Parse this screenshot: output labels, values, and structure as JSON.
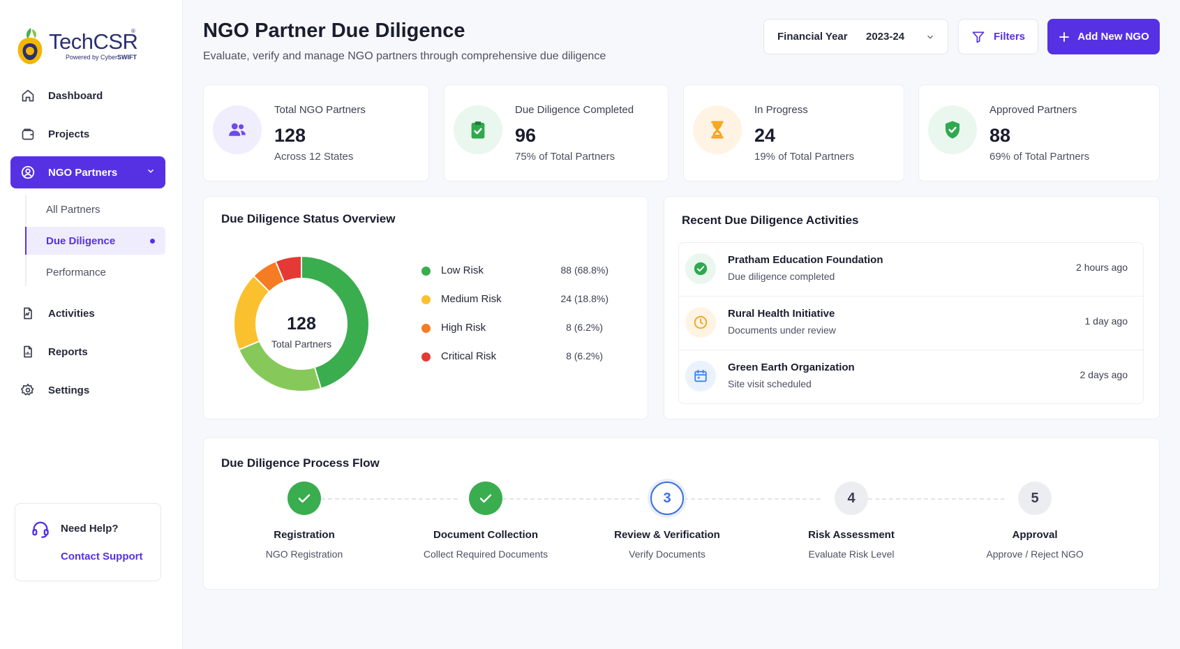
{
  "brand": {
    "name": "TechCSR",
    "registered": "®",
    "powered_by": "Powered by Cyber",
    "powered_brand": "SWIFT"
  },
  "sidebar": {
    "items": [
      {
        "label": "Dashboard",
        "icon": "home-icon"
      },
      {
        "label": "Projects",
        "icon": "wallet-icon"
      },
      {
        "label": "NGO Partners",
        "icon": "partners-icon"
      },
      {
        "label": "Activities",
        "icon": "activity-icon"
      },
      {
        "label": "Reports",
        "icon": "report-icon"
      },
      {
        "label": "Settings",
        "icon": "gear-icon"
      }
    ],
    "subitems": [
      {
        "label": "All Partners"
      },
      {
        "label": "Due Diligence"
      },
      {
        "label": "Performance"
      }
    ],
    "help": {
      "title": "Need Help?",
      "link": "Contact Support"
    }
  },
  "header": {
    "title": "NGO Partner Due Diligence",
    "subtitle": "Evaluate, verify and manage NGO partners through comprehensive due diligence",
    "fy_label": "Financial Year",
    "fy_value": "2023-24",
    "filters_label": "Filters",
    "add_label": "Add New NGO"
  },
  "stats": [
    {
      "label": "Total NGO Partners",
      "value": "128",
      "sub": "Across 12 States",
      "icon": "users-icon",
      "color": "#6c4bea",
      "bg": "#f0edfd"
    },
    {
      "label": "Due Diligence Completed",
      "value": "96",
      "sub": "75% of Total Partners",
      "icon": "clipboard-check-icon",
      "color": "#2fa84f",
      "bg": "#e9f7ee"
    },
    {
      "label": "In Progress",
      "value": "24",
      "sub": "19% of Total Partners",
      "icon": "hourglass-icon",
      "color": "#f5a623",
      "bg": "#fff4e4"
    },
    {
      "label": "Approved Partners",
      "value": "88",
      "sub": "69% of Total Partners",
      "icon": "shield-check-icon",
      "color": "#2fa84f",
      "bg": "#e9f7ee"
    }
  ],
  "status_overview": {
    "title": "Due Diligence Status Overview",
    "center_value": "128",
    "center_label": "Total Partners",
    "legend": [
      {
        "name": "Low Risk",
        "value": "88 (68.8%)",
        "color": "#3aad4f"
      },
      {
        "name": "Medium Risk",
        "value": "24 (18.8%)",
        "color": "#fbc02d"
      },
      {
        "name": "High Risk",
        "value": "8 (6.2%)",
        "color": "#f57c22"
      },
      {
        "name": "Critical Risk",
        "value": "8 (6.2%)",
        "color": "#e53935"
      }
    ]
  },
  "chart_data": {
    "type": "pie",
    "categories": [
      "Low Risk",
      "Medium Risk",
      "High Risk",
      "Critical Risk"
    ],
    "values": [
      88,
      24,
      8,
      8
    ],
    "segments": [
      {
        "value": 58,
        "color": "#3aad4f"
      },
      {
        "value": 30,
        "color": "#86c95a"
      },
      {
        "value": 24,
        "color": "#fbc02d"
      },
      {
        "value": 8,
        "color": "#f57c22"
      },
      {
        "value": 8,
        "color": "#e53935"
      }
    ]
  },
  "activities": {
    "title": "Recent Due Diligence Activities",
    "items": [
      {
        "name": "Pratham Education Foundation",
        "desc": "Due diligence completed",
        "time": "2 hours ago",
        "icon": "check-circle-icon",
        "color": "#2fa84f",
        "bg": "#e9f7ee"
      },
      {
        "name": "Rural Health Initiative",
        "desc": "Documents under review",
        "time": "1 day ago",
        "icon": "clock-icon",
        "color": "#f5a623",
        "bg": "#fff4e4"
      },
      {
        "name": "Green Earth Organization",
        "desc": "Site visit scheduled",
        "time": "2 days ago",
        "icon": "calendar-icon",
        "color": "#3b82f6",
        "bg": "#eaf2fe"
      }
    ]
  },
  "process": {
    "title": "Due Diligence Process Flow",
    "steps": [
      {
        "number": "1",
        "title": "Registration",
        "desc": "NGO Registration",
        "state": "done"
      },
      {
        "number": "2",
        "title": "Document Collection",
        "desc": "Collect Required Documents",
        "state": "done"
      },
      {
        "number": "3",
        "title": "Review & Verification",
        "desc": "Verify Documents",
        "state": "current"
      },
      {
        "number": "4",
        "title": "Risk Assessment",
        "desc": "Evaluate Risk Level",
        "state": "pending"
      },
      {
        "number": "5",
        "title": "Approval",
        "desc": "Approve / Reject NGO",
        "state": "pending"
      }
    ]
  }
}
